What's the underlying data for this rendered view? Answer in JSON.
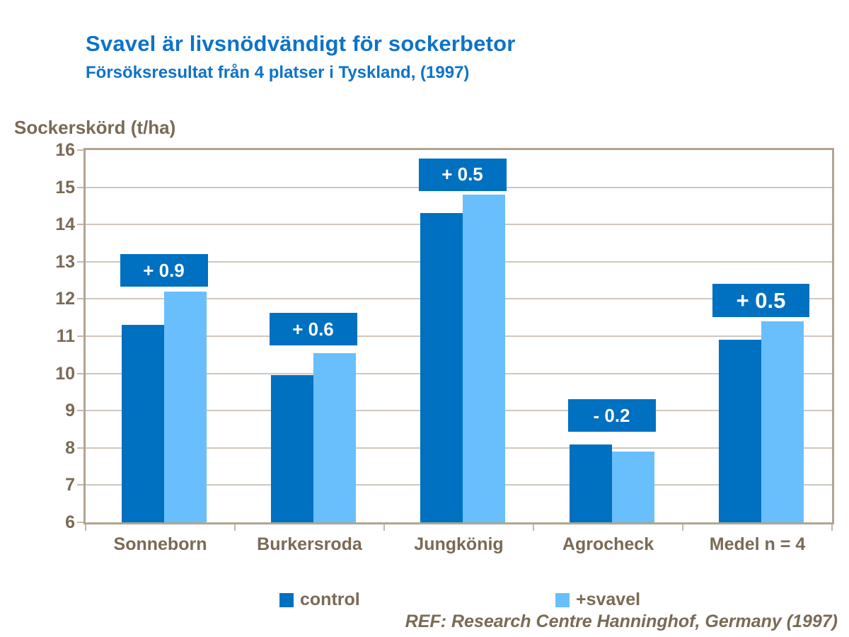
{
  "header": {
    "title": "Svavel är livsnödvändigt för sockerbetor",
    "subtitle": "Försöksresultat från 4 platser i Tyskland, (1997)"
  },
  "chart_data": {
    "type": "bar",
    "title": "Svavel är livsnödvändigt för sockerbetor",
    "subtitle": "Försöksresultat från 4 platser i Tyskland, (1997)",
    "ylabel": "Sockerskörd (t/ha)",
    "xlabel": "",
    "categories": [
      "Sonneborn",
      "Burkersroda",
      "Jungkönig",
      "Agrocheck",
      "Medel n = 4"
    ],
    "series": [
      {
        "name": "control",
        "color": "#0070c0",
        "values": [
          11.3,
          9.95,
          14.3,
          8.1,
          10.9
        ]
      },
      {
        "name": "+svavel",
        "color": "#69befc",
        "values": [
          12.2,
          10.55,
          14.8,
          7.9,
          11.4
        ]
      }
    ],
    "annotations": [
      {
        "text": "+ 0.9",
        "label_y": 12.33,
        "emphasis": false
      },
      {
        "text": "+ 0.6",
        "label_y": 10.75,
        "emphasis": false
      },
      {
        "text": "+ 0.5",
        "label_y": 14.9,
        "emphasis": false
      },
      {
        "text": "- 0.2",
        "label_y": 8.43,
        "emphasis": false
      },
      {
        "text": "+ 0.5",
        "label_y": 11.51,
        "emphasis": true
      }
    ],
    "ylim": [
      6,
      16
    ],
    "ytick_step": 1,
    "grid": true,
    "legend_position": "bottom"
  },
  "legend": {
    "items": [
      {
        "label": "control",
        "color": "#0070c0"
      },
      {
        "label": "+svavel",
        "color": "#69befc"
      }
    ]
  },
  "footer": {
    "ref": "REF: Research Centre Hanninghof, Germany (1997)"
  },
  "colors": {
    "title_blue": "#0e73c9",
    "bar_dark_blue": "#0070c0",
    "bar_light_blue": "#69befc",
    "text_brown": "#7a6a55",
    "gridline": "#d0c6ba",
    "axis_border": "#b2a493",
    "annotation_bg": "#0070c0",
    "annotation_text": "#ffffff"
  }
}
